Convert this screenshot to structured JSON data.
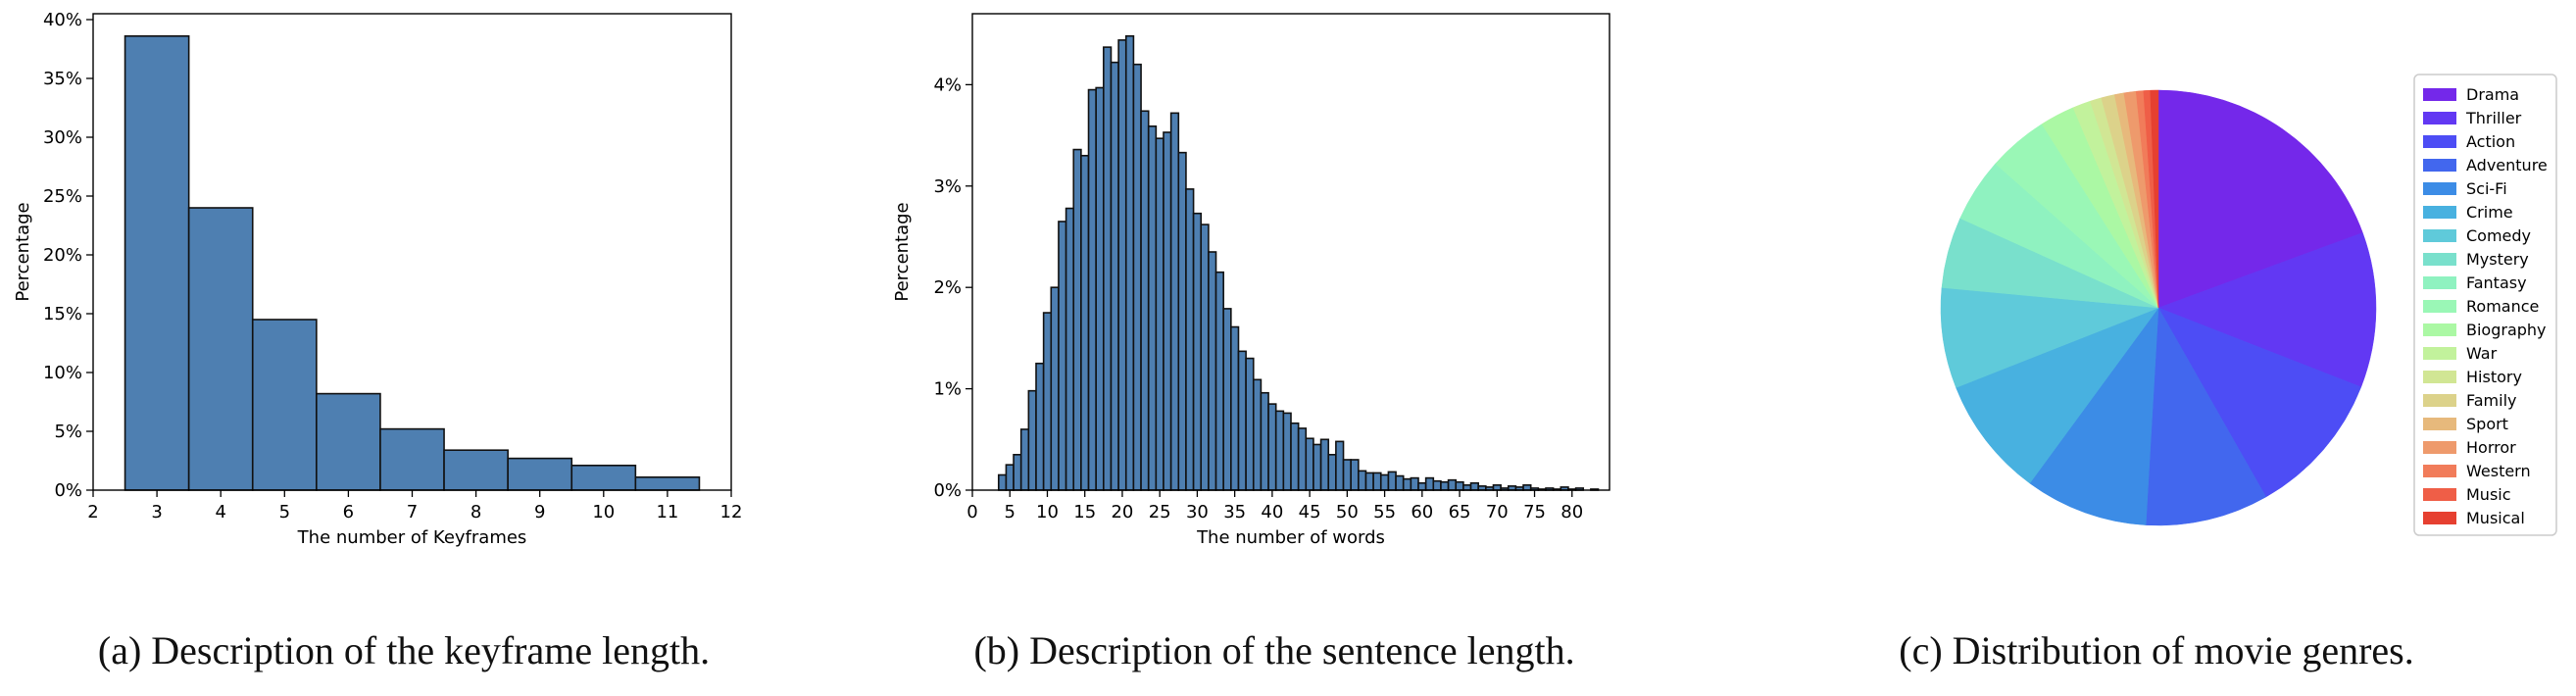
{
  "captions": {
    "a": "(a) Description of the keyframe length.",
    "b": "(b) Description of the sentence length.",
    "c": "(c) Distribution of movie genres."
  },
  "colors": {
    "bar": "#4e7fb1",
    "edge": "#111111"
  },
  "chart_data": [
    {
      "type": "bar",
      "title": "",
      "xlabel": "The number of Keyframes",
      "ylabel": "Percentage",
      "xlim": [
        2,
        12
      ],
      "ylim": [
        0,
        40.5
      ],
      "xticks": [
        2,
        3,
        4,
        5,
        6,
        7,
        8,
        9,
        10,
        11,
        12
      ],
      "yticks": [
        "0%",
        "5%",
        "10%",
        "15%",
        "20%",
        "25%",
        "30%",
        "35%",
        "40%"
      ],
      "categories": [
        3,
        4,
        5,
        6,
        7,
        8,
        9,
        10,
        11
      ],
      "values": [
        38.6,
        24.0,
        14.5,
        8.2,
        5.2,
        3.4,
        2.7,
        2.1,
        1.1
      ]
    },
    {
      "type": "bar",
      "title": "",
      "xlabel": "The number of words",
      "ylabel": "Percentage",
      "xlim": [
        0,
        85
      ],
      "ylim": [
        0,
        4.7
      ],
      "xticks": [
        0,
        5,
        10,
        15,
        20,
        25,
        30,
        35,
        40,
        45,
        50,
        55,
        60,
        65,
        70,
        75,
        80
      ],
      "yticks": [
        "0%",
        "1%",
        "2%",
        "3%",
        "4%"
      ],
      "categories": [
        4,
        5,
        6,
        7,
        8,
        9,
        10,
        11,
        12,
        13,
        14,
        15,
        16,
        17,
        18,
        19,
        20,
        21,
        22,
        23,
        24,
        25,
        26,
        27,
        28,
        29,
        30,
        31,
        32,
        33,
        34,
        35,
        36,
        37,
        38,
        39,
        40,
        41,
        42,
        43,
        44,
        45,
        46,
        47,
        48,
        49,
        50,
        51,
        52,
        53,
        54,
        55,
        56,
        57,
        58,
        59,
        60,
        61,
        62,
        63,
        64,
        65,
        66,
        67,
        68,
        69,
        70,
        71,
        72,
        73,
        74,
        75,
        76,
        77,
        78,
        79,
        80,
        81,
        82,
        83
      ],
      "values": [
        0.15,
        0.25,
        0.35,
        0.6,
        0.98,
        1.25,
        1.75,
        2.0,
        2.65,
        2.78,
        3.36,
        3.3,
        3.95,
        3.97,
        4.37,
        4.22,
        4.44,
        4.48,
        4.2,
        3.74,
        3.59,
        3.47,
        3.53,
        3.72,
        3.33,
        2.97,
        2.73,
        2.62,
        2.35,
        2.15,
        1.79,
        1.61,
        1.37,
        1.3,
        1.09,
        0.96,
        0.85,
        0.78,
        0.76,
        0.66,
        0.61,
        0.51,
        0.45,
        0.5,
        0.35,
        0.48,
        0.3,
        0.3,
        0.19,
        0.17,
        0.17,
        0.15,
        0.18,
        0.14,
        0.11,
        0.12,
        0.07,
        0.12,
        0.09,
        0.08,
        0.1,
        0.08,
        0.05,
        0.07,
        0.04,
        0.03,
        0.05,
        0.02,
        0.04,
        0.03,
        0.05,
        0.02,
        0.01,
        0.02,
        0.01,
        0.03,
        0.01,
        0.02,
        0.0,
        0.01
      ]
    },
    {
      "type": "pie",
      "title": "",
      "legend_position": "right",
      "categories": [
        "Drama",
        "Thriller",
        "Action",
        "Adventure",
        "Sci-Fi",
        "Crime",
        "Comedy",
        "Mystery",
        "Fantasy",
        "Romance",
        "Biography",
        "War",
        "History",
        "Family",
        "Sport",
        "Horror",
        "Western",
        "Music",
        "Musical"
      ],
      "values": [
        19.5,
        11.6,
        10.9,
        9.2,
        9.2,
        9.0,
        7.5,
        5.3,
        4.8,
        4.5,
        2.6,
        1.35,
        0.85,
        1.0,
        0.7,
        0.9,
        0.55,
        0.5,
        0.6
      ],
      "colors": [
        "#7428ea",
        "#6238f3",
        "#4d4df5",
        "#4267ee",
        "#3c8ce6",
        "#48b1e0",
        "#5fcada",
        "#79e0cc",
        "#8ff2c0",
        "#9af7b6",
        "#abf8a4",
        "#c2f29c",
        "#d1e694",
        "#dcd28a",
        "#e7b97c",
        "#ee9a6c",
        "#f17c5a",
        "#ef5e47",
        "#e64030"
      ]
    }
  ]
}
